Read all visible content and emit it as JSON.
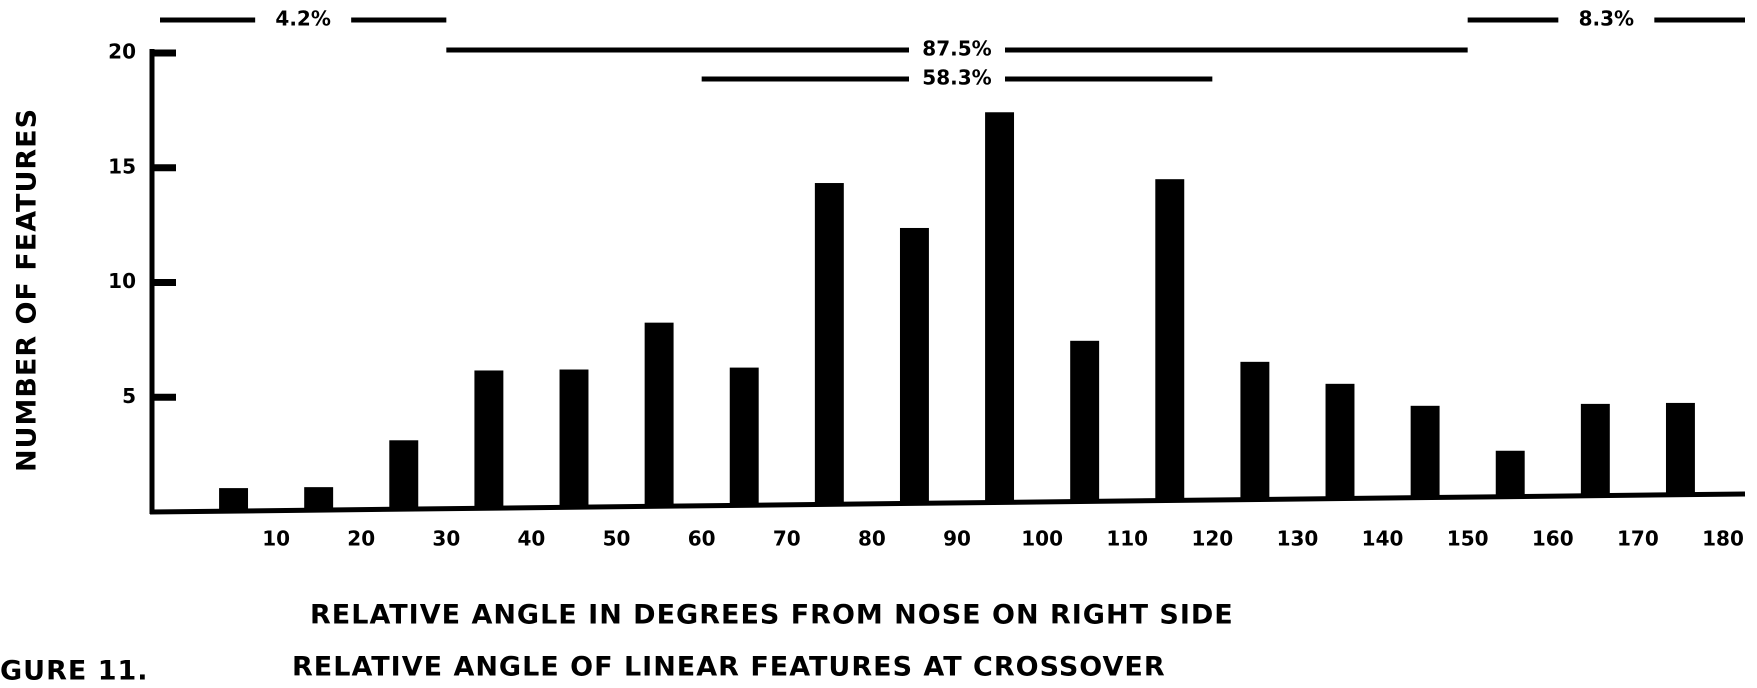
{
  "chart_data": {
    "type": "histogram",
    "title": "RELATIVE ANGLE OF LINEAR FEATURES AT CROSSOVER",
    "figure_label": "GURE 11.",
    "xlabel": "RELATIVE ANGLE IN DEGREES FROM NOSE ON RIGHT SIDE",
    "ylabel": "NUMBER OF FEATURES",
    "bins": [
      0,
      10,
      20,
      30,
      40,
      50,
      60,
      70,
      80,
      90,
      100,
      110,
      120,
      130,
      140,
      150,
      160,
      170,
      180
    ],
    "values": [
      1,
      1,
      3,
      6,
      6,
      8,
      6,
      14,
      12,
      17,
      7,
      14,
      6,
      5,
      4,
      2,
      4,
      4
    ],
    "color": "#000000",
    "xlim": [
      0,
      180
    ],
    "xticks": [
      10,
      20,
      30,
      40,
      50,
      60,
      70,
      80,
      90,
      100,
      110,
      120,
      130,
      140,
      150,
      160,
      170,
      180
    ],
    "ylim": [
      0,
      20
    ],
    "yticks": [
      5,
      10,
      15,
      20
    ],
    "annotations": [
      {
        "label": "4.2%",
        "range": [
          0,
          30
        ]
      },
      {
        "label": "87.5%",
        "range": [
          30,
          150
        ]
      },
      {
        "label": "58.3%",
        "range": [
          60,
          120
        ]
      },
      {
        "label": "8.3%",
        "range": [
          150,
          180
        ]
      }
    ]
  }
}
